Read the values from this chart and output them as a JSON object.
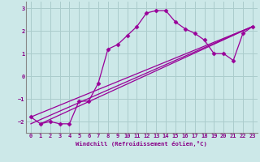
{
  "xlabel": "Windchill (Refroidissement éolien,°C)",
  "bg_color": "#cce8e8",
  "line_color": "#990099",
  "grid_color": "#aacccc",
  "x_data": [
    0,
    1,
    2,
    3,
    4,
    5,
    6,
    7,
    8,
    9,
    10,
    11,
    12,
    13,
    14,
    15,
    16,
    17,
    18,
    19,
    20,
    21,
    22,
    23
  ],
  "series1": [
    -1.8,
    -2.1,
    -2.0,
    -2.1,
    -2.1,
    -1.1,
    -1.1,
    -0.3,
    1.2,
    1.4,
    1.8,
    2.2,
    2.8,
    2.9,
    2.9,
    2.4,
    2.1,
    1.9,
    1.6,
    1.0,
    1.0,
    0.7,
    1.9,
    2.2
  ],
  "line2_x": [
    0,
    23
  ],
  "line2_y": [
    -1.8,
    2.2
  ],
  "line3_x": [
    0,
    23
  ],
  "line3_y": [
    -2.1,
    2.2
  ],
  "line4_x": [
    1,
    23
  ],
  "line4_y": [
    -2.1,
    2.2
  ],
  "xlim": [
    -0.5,
    23.5
  ],
  "ylim": [
    -2.5,
    3.3
  ],
  "xticks": [
    0,
    1,
    2,
    3,
    4,
    5,
    6,
    7,
    8,
    9,
    10,
    11,
    12,
    13,
    14,
    15,
    16,
    17,
    18,
    19,
    20,
    21,
    22,
    23
  ],
  "yticks": [
    -2,
    -1,
    0,
    1,
    2,
    3
  ],
  "text_color": "#880088",
  "spine_color": "#888888"
}
